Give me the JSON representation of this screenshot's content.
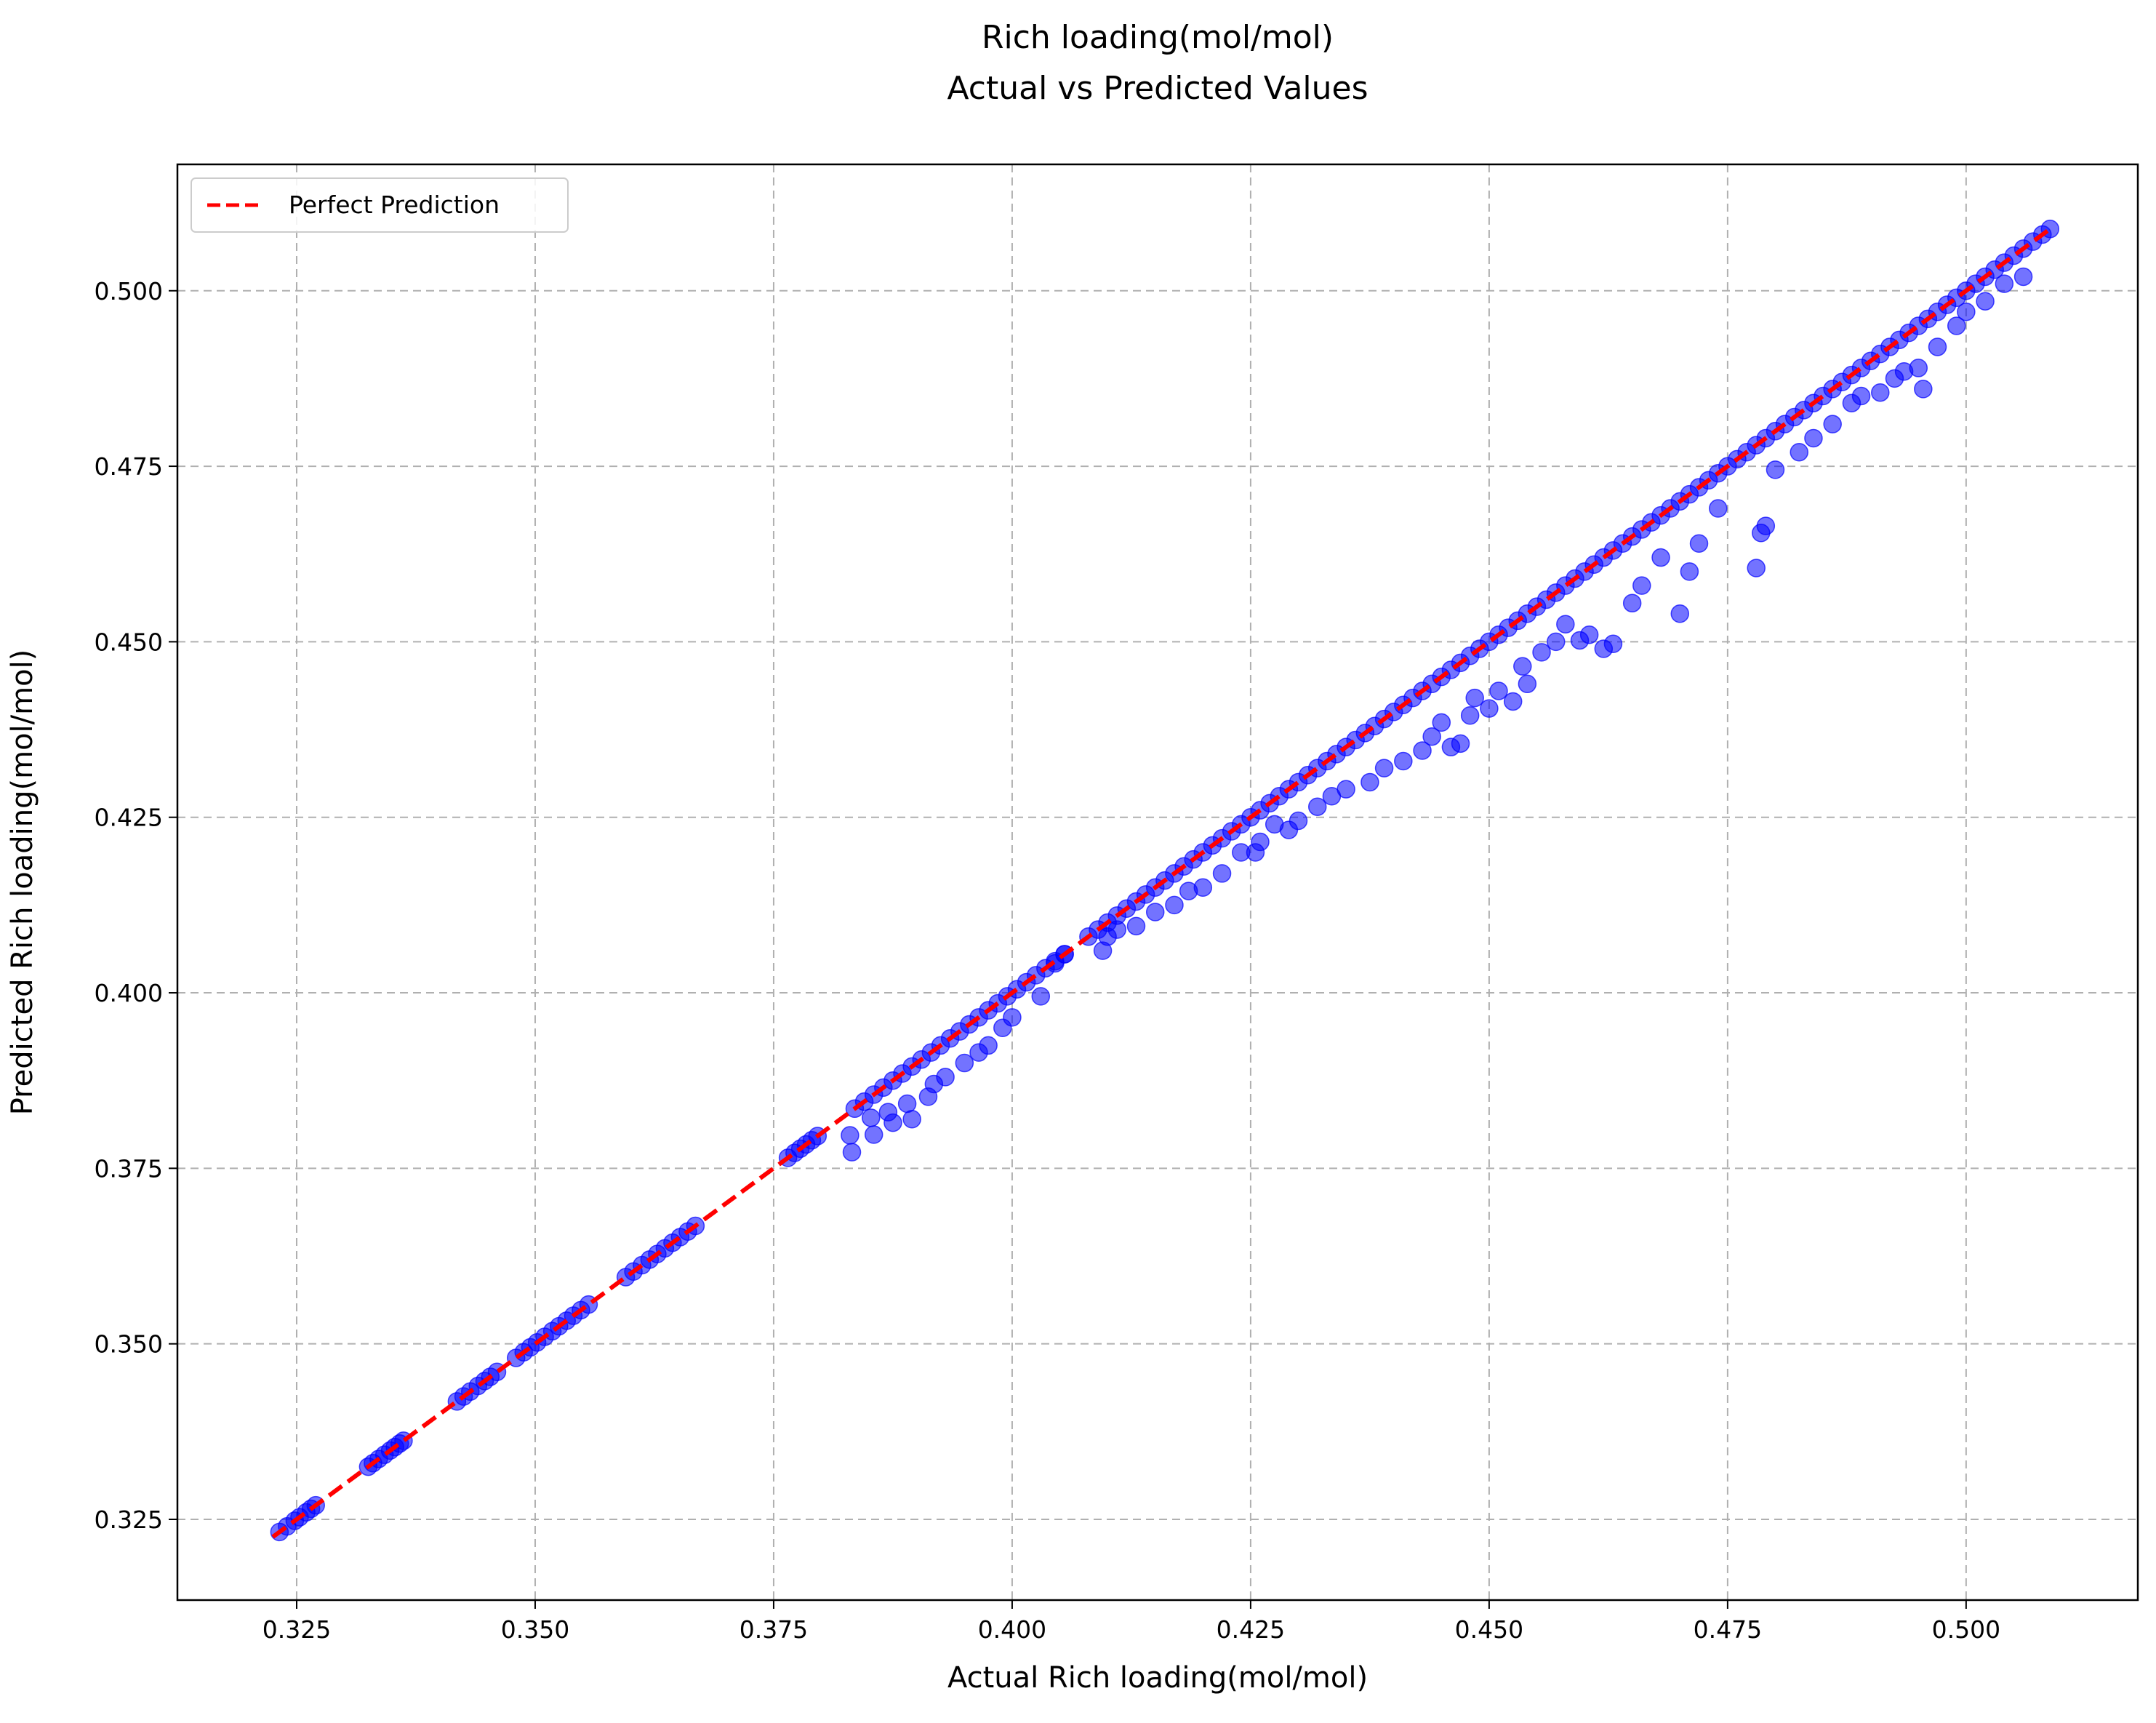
{
  "chart_data": {
    "type": "scatter",
    "title_lines": [
      "Rich loading(mol/mol)",
      "Actual vs Predicted Values"
    ],
    "xlabel": "Actual Rich loading(mol/mol)",
    "ylabel": "Predicted Rich loading(mol/mol)",
    "xlim": [
      0.3125,
      0.518
    ],
    "ylim": [
      0.3135,
      0.518
    ],
    "x_ticks": [
      0.325,
      0.35,
      0.375,
      0.4,
      0.425,
      0.45,
      0.475,
      0.5
    ],
    "x_tick_labels": [
      "0.325",
      "0.350",
      "0.375",
      "0.400",
      "0.425",
      "0.450",
      "0.475",
      "0.500"
    ],
    "y_ticks": [
      0.325,
      0.35,
      0.375,
      0.4,
      0.425,
      0.45,
      0.475,
      0.5
    ],
    "y_tick_labels": [
      "0.325",
      "0.350",
      "0.375",
      "0.400",
      "0.425",
      "0.450",
      "0.475",
      "0.500"
    ],
    "grid": true,
    "legend_position": "top-left",
    "legend_entries": [
      "Perfect Prediction"
    ],
    "reference_line": {
      "x": [
        0.3225,
        0.509
      ],
      "y": [
        0.3225,
        0.509
      ],
      "color": "#ff0000",
      "style": "dashed"
    },
    "point_color": "#0000ff",
    "points_on_diagonal": [
      0.3232,
      0.324,
      0.3248,
      0.3253,
      0.326,
      0.3265,
      0.327,
      0.3325,
      0.333,
      0.3336,
      0.3342,
      0.3348,
      0.3353,
      0.3358,
      0.3362,
      0.3418,
      0.3425,
      0.3432,
      0.344,
      0.3447,
      0.3453,
      0.346,
      0.348,
      0.3488,
      0.3495,
      0.3502,
      0.351,
      0.3518,
      0.3525,
      0.3533,
      0.354,
      0.3548,
      0.3556,
      0.3595,
      0.3603,
      0.3612,
      0.362,
      0.3628,
      0.3636,
      0.3644,
      0.3652,
      0.366,
      0.3668,
      0.3765,
      0.3772,
      0.3778,
      0.3784,
      0.379,
      0.3796,
      0.3835,
      0.3845,
      0.3855,
      0.3865,
      0.3875,
      0.3885,
      0.3895,
      0.3905,
      0.3915,
      0.3925,
      0.3935,
      0.3945,
      0.3955,
      0.3965,
      0.3975,
      0.3985,
      0.3995,
      0.4005,
      0.4015,
      0.4025,
      0.4035,
      0.4045,
      0.4055,
      0.408,
      0.409,
      0.41,
      0.411,
      0.412,
      0.413,
      0.414,
      0.415,
      0.416,
      0.417,
      0.418,
      0.419,
      0.42,
      0.421,
      0.422,
      0.423,
      0.424,
      0.425,
      0.426,
      0.427,
      0.428,
      0.429,
      0.43,
      0.431,
      0.432,
      0.433,
      0.434,
      0.435,
      0.436,
      0.437,
      0.438,
      0.439,
      0.44,
      0.441,
      0.442,
      0.443,
      0.444,
      0.445,
      0.446,
      0.447,
      0.448,
      0.449,
      0.45,
      0.451,
      0.452,
      0.453,
      0.454,
      0.455,
      0.456,
      0.457,
      0.458,
      0.459,
      0.46,
      0.461,
      0.462,
      0.463,
      0.464,
      0.465,
      0.466,
      0.467,
      0.468,
      0.469,
      0.47,
      0.471,
      0.472,
      0.473,
      0.474,
      0.475,
      0.476,
      0.477,
      0.478,
      0.479,
      0.48,
      0.481,
      0.482,
      0.483,
      0.484,
      0.485,
      0.486,
      0.487,
      0.488,
      0.489,
      0.49,
      0.491,
      0.492,
      0.493,
      0.494,
      0.495,
      0.496,
      0.497,
      0.498,
      0.499,
      0.5,
      0.501,
      0.502,
      0.503,
      0.504,
      0.505,
      0.506,
      0.507,
      0.508,
      0.5088
    ],
    "points_off_diagonal": [
      [
        0.383,
        0.3797
      ],
      [
        0.3832,
        0.3773
      ],
      [
        0.3852,
        0.3822
      ],
      [
        0.3855,
        0.3798
      ],
      [
        0.387,
        0.383
      ],
      [
        0.3875,
        0.3815
      ],
      [
        0.389,
        0.3842
      ],
      [
        0.3895,
        0.382
      ],
      [
        0.3912,
        0.3852
      ],
      [
        0.3918,
        0.387
      ],
      [
        0.393,
        0.388
      ],
      [
        0.395,
        0.39
      ],
      [
        0.3965,
        0.3915
      ],
      [
        0.3975,
        0.3925
      ],
      [
        0.399,
        0.395
      ],
      [
        0.4,
        0.3965
      ],
      [
        0.403,
        0.3995
      ],
      [
        0.4045,
        0.4042
      ],
      [
        0.4055,
        0.4055
      ],
      [
        0.4095,
        0.406
      ],
      [
        0.41,
        0.408
      ],
      [
        0.411,
        0.409
      ],
      [
        0.413,
        0.4095
      ],
      [
        0.415,
        0.4115
      ],
      [
        0.417,
        0.4125
      ],
      [
        0.4185,
        0.4145
      ],
      [
        0.42,
        0.415
      ],
      [
        0.422,
        0.417
      ],
      [
        0.424,
        0.42
      ],
      [
        0.4255,
        0.42
      ],
      [
        0.426,
        0.4215
      ],
      [
        0.4275,
        0.424
      ],
      [
        0.429,
        0.4232
      ],
      [
        0.43,
        0.4245
      ],
      [
        0.432,
        0.4265
      ],
      [
        0.4335,
        0.428
      ],
      [
        0.435,
        0.429
      ],
      [
        0.4375,
        0.43
      ],
      [
        0.439,
        0.432
      ],
      [
        0.441,
        0.433
      ],
      [
        0.443,
        0.4345
      ],
      [
        0.444,
        0.4365
      ],
      [
        0.445,
        0.4385
      ],
      [
        0.446,
        0.435
      ],
      [
        0.447,
        0.4355
      ],
      [
        0.448,
        0.4395
      ],
      [
        0.4485,
        0.442
      ],
      [
        0.45,
        0.4405
      ],
      [
        0.451,
        0.443
      ],
      [
        0.4525,
        0.4415
      ],
      [
        0.4535,
        0.4465
      ],
      [
        0.454,
        0.444
      ],
      [
        0.4555,
        0.4485
      ],
      [
        0.457,
        0.45
      ],
      [
        0.458,
        0.4525
      ],
      [
        0.4595,
        0.4502
      ],
      [
        0.4605,
        0.451
      ],
      [
        0.462,
        0.449
      ],
      [
        0.463,
        0.4497
      ],
      [
        0.465,
        0.4555
      ],
      [
        0.466,
        0.458
      ],
      [
        0.468,
        0.462
      ],
      [
        0.47,
        0.454
      ],
      [
        0.471,
        0.46
      ],
      [
        0.472,
        0.464
      ],
      [
        0.474,
        0.469
      ],
      [
        0.478,
        0.4605
      ],
      [
        0.479,
        0.4665
      ],
      [
        0.4785,
        0.4655
      ],
      [
        0.48,
        0.4745
      ],
      [
        0.4825,
        0.477
      ],
      [
        0.484,
        0.479
      ],
      [
        0.486,
        0.481
      ],
      [
        0.488,
        0.484
      ],
      [
        0.489,
        0.485
      ],
      [
        0.491,
        0.4855
      ],
      [
        0.4925,
        0.4875
      ],
      [
        0.4935,
        0.4885
      ],
      [
        0.495,
        0.489
      ],
      [
        0.4955,
        0.486
      ],
      [
        0.497,
        0.492
      ],
      [
        0.499,
        0.495
      ],
      [
        0.5,
        0.497
      ],
      [
        0.502,
        0.4985
      ],
      [
        0.504,
        0.501
      ],
      [
        0.506,
        0.502
      ]
    ]
  }
}
